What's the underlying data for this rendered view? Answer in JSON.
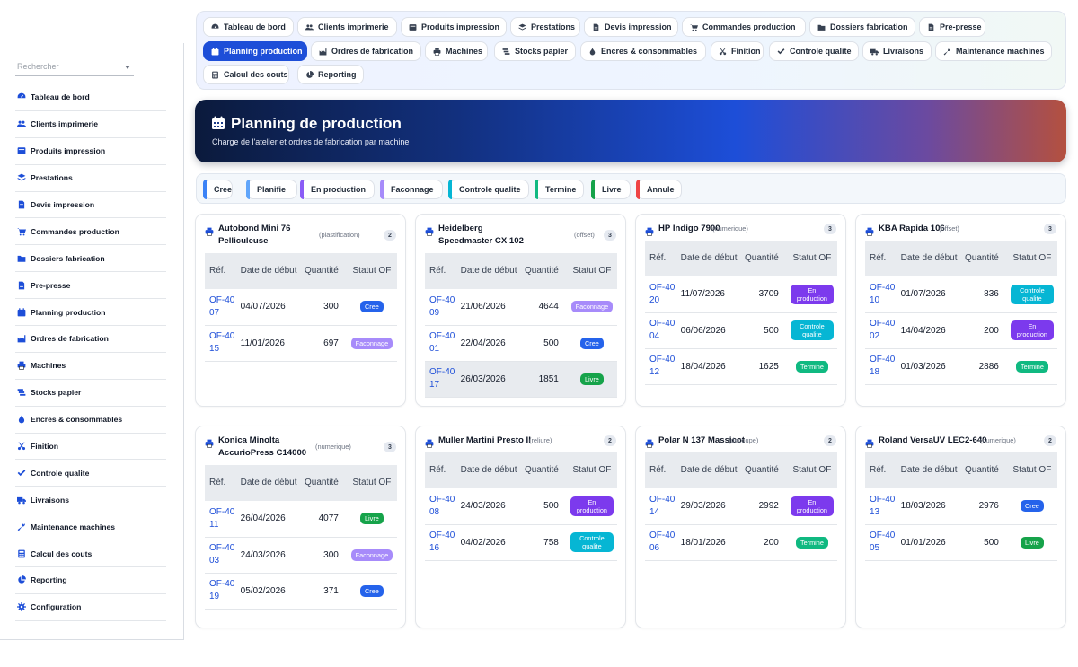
{
  "sidebar": {
    "search_placeholder": "Rechercher",
    "items": [
      {
        "label": "Tableau de bord",
        "icon": "dashboard-icon"
      },
      {
        "label": "Clients imprimerie",
        "icon": "users-icon"
      },
      {
        "label": "Produits impression",
        "icon": "box-icon"
      },
      {
        "label": "Prestations",
        "icon": "layers-icon"
      },
      {
        "label": "Devis impression",
        "icon": "file-icon"
      },
      {
        "label": "Commandes production",
        "icon": "cart-icon"
      },
      {
        "label": "Dossiers fabrication",
        "icon": "folder-icon"
      },
      {
        "label": "Pre-presse",
        "icon": "file-icon"
      },
      {
        "label": "Planning production",
        "icon": "calendar-icon"
      },
      {
        "label": "Ordres de fabrication",
        "icon": "factory-icon"
      },
      {
        "label": "Machines",
        "icon": "printer-icon"
      },
      {
        "label": "Stocks papier",
        "icon": "stack-icon"
      },
      {
        "label": "Encres & consommables",
        "icon": "ink-icon"
      },
      {
        "label": "Finition",
        "icon": "scissors-icon"
      },
      {
        "label": "Controle qualite",
        "icon": "check-icon"
      },
      {
        "label": "Livraisons",
        "icon": "truck-icon"
      },
      {
        "label": "Maintenance machines",
        "icon": "wrench-icon"
      },
      {
        "label": "Calcul des couts",
        "icon": "calculator-icon"
      },
      {
        "label": "Reporting",
        "icon": "pie-chart-icon"
      },
      {
        "label": "Configuration",
        "icon": "gear-icon"
      }
    ]
  },
  "topnav": {
    "items": [
      {
        "label": "Tableau de bord",
        "icon": "dashboard-icon"
      },
      {
        "label": "Clients imprimerie",
        "icon": "users-icon"
      },
      {
        "label": "Produits impression",
        "icon": "box-icon"
      },
      {
        "label": "Prestations",
        "icon": "layers-icon"
      },
      {
        "label": "Devis impression",
        "icon": "file-icon"
      },
      {
        "label": "Commandes production",
        "icon": "cart-icon"
      },
      {
        "label": "Dossiers fabrication",
        "icon": "folder-icon"
      },
      {
        "label": "Pre-presse",
        "icon": "file-icon"
      },
      {
        "label": "Planning production",
        "icon": "calendar-icon",
        "active": true
      },
      {
        "label": "Ordres de fabrication",
        "icon": "factory-icon"
      },
      {
        "label": "Machines",
        "icon": "printer-icon"
      },
      {
        "label": "Stocks papier",
        "icon": "stack-icon"
      },
      {
        "label": "Encres & consommables",
        "icon": "ink-icon"
      },
      {
        "label": "Finition",
        "icon": "scissors-icon"
      },
      {
        "label": "Controle qualite",
        "icon": "check-icon"
      },
      {
        "label": "Livraisons",
        "icon": "truck-icon"
      },
      {
        "label": "Maintenance machines",
        "icon": "wrench-icon"
      },
      {
        "label": "Calcul des couts",
        "icon": "calculator-icon"
      },
      {
        "label": "Reporting",
        "icon": "pie-chart-icon"
      }
    ]
  },
  "hero": {
    "title": "Planning de production",
    "subtitle": "Charge de l'atelier et ordres de fabrication par machine"
  },
  "status_filters": [
    {
      "label": "Cree",
      "color": "#3b82f6"
    },
    {
      "label": "Planifie",
      "color": "#60a5fa"
    },
    {
      "label": "En production",
      "color": "#8b5cf6"
    },
    {
      "label": "Faconnage",
      "color": "#a78bfa"
    },
    {
      "label": "Controle qualite",
      "color": "#06b6d4"
    },
    {
      "label": "Termine",
      "color": "#10b981"
    },
    {
      "label": "Livre",
      "color": "#16a34a"
    },
    {
      "label": "Annule",
      "color": "#ef4444"
    }
  ],
  "status_colors": {
    "Cree": "#2563eb",
    "Faconnage": "#a78bfa",
    "En production": "#7c3aed",
    "Controle qualite": "#06b6d4",
    "Termine": "#10b981",
    "Livre": "#16a34a"
  },
  "table_headers": {
    "ref": "Réf.",
    "start": "Date de début",
    "qty": "Quantité",
    "status": "Statut OF"
  },
  "machines": [
    {
      "name": "Autobond Mini 76 Pelliculeuse",
      "type": "(plastification)",
      "count": "2",
      "orders": [
        {
          "ref": "OF-4007",
          "date": "04/07/2026",
          "qty": "300",
          "status": "Cree"
        },
        {
          "ref": "OF-4015",
          "date": "11/01/2026",
          "qty": "697",
          "status": "Faconnage"
        }
      ]
    },
    {
      "name": "Heidelberg Speedmaster CX 102",
      "type": "(offset)",
      "count": "3",
      "orders": [
        {
          "ref": "OF-4009",
          "date": "21/06/2026",
          "qty": "4644",
          "status": "Faconnage"
        },
        {
          "ref": "OF-4001",
          "date": "22/04/2026",
          "qty": "500",
          "status": "Cree"
        },
        {
          "ref": "OF-4017",
          "date": "26/03/2026",
          "qty": "1851",
          "status": "Livre"
        }
      ]
    },
    {
      "name": "HP Indigo 7900",
      "type": "(numerique)",
      "count": "3",
      "orders": [
        {
          "ref": "OF-4020",
          "date": "11/07/2026",
          "qty": "3709",
          "status": "En production"
        },
        {
          "ref": "OF-4004",
          "date": "06/06/2026",
          "qty": "500",
          "status": "Controle qualite"
        },
        {
          "ref": "OF-4012",
          "date": "18/04/2026",
          "qty": "1625",
          "status": "Termine"
        }
      ]
    },
    {
      "name": "KBA Rapida 106",
      "type": "(offset)",
      "count": "3",
      "orders": [
        {
          "ref": "OF-4010",
          "date": "01/07/2026",
          "qty": "836",
          "status": "Controle qualite"
        },
        {
          "ref": "OF-4002",
          "date": "14/04/2026",
          "qty": "200",
          "status": "En production"
        },
        {
          "ref": "OF-4018",
          "date": "01/03/2026",
          "qty": "2886",
          "status": "Termine"
        }
      ]
    },
    {
      "name": "Konica Minolta AccurioPress C14000",
      "type": "(numerique)",
      "count": "3",
      "orders": [
        {
          "ref": "OF-4011",
          "date": "26/04/2026",
          "qty": "4077",
          "status": "Livre"
        },
        {
          "ref": "OF-4003",
          "date": "24/03/2026",
          "qty": "300",
          "status": "Faconnage"
        },
        {
          "ref": "OF-4019",
          "date": "05/02/2026",
          "qty": "371",
          "status": "Cree"
        }
      ]
    },
    {
      "name": "Muller Martini Presto II",
      "type": "(reliure)",
      "count": "2",
      "orders": [
        {
          "ref": "OF-4008",
          "date": "24/03/2026",
          "qty": "500",
          "status": "En production"
        },
        {
          "ref": "OF-4016",
          "date": "04/02/2026",
          "qty": "758",
          "status": "Controle qualite"
        }
      ]
    },
    {
      "name": "Polar N 137 Massicot",
      "type": "(decoupe)",
      "count": "2",
      "orders": [
        {
          "ref": "OF-4014",
          "date": "29/03/2026",
          "qty": "2992",
          "status": "En production"
        },
        {
          "ref": "OF-4006",
          "date": "18/01/2026",
          "qty": "200",
          "status": "Termine"
        }
      ]
    },
    {
      "name": "Roland VersaUV LEC2-640",
      "type": "(numerique)",
      "count": "2",
      "orders": [
        {
          "ref": "OF-4013",
          "date": "18/03/2026",
          "qty": "2976",
          "status": "Cree"
        },
        {
          "ref": "OF-4005",
          "date": "01/01/2026",
          "qty": "500",
          "status": "Livre"
        }
      ]
    }
  ]
}
